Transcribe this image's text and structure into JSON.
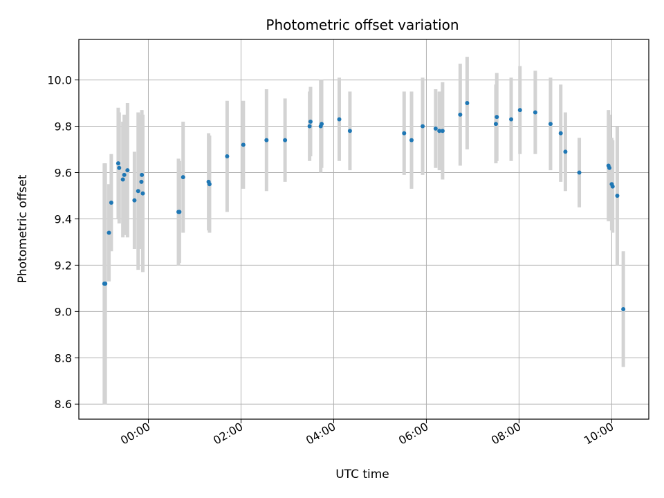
{
  "chart_data": {
    "type": "scatter",
    "title": "Photometric offset variation",
    "xlabel": "UTC time",
    "ylabel": "Photometric offset",
    "x_unit": "hours (UTC)",
    "xlim": [
      -1.5,
      10.8
    ],
    "ylim": [
      8.535,
      10.175
    ],
    "x_ticks": [
      0,
      2,
      4,
      6,
      8,
      10
    ],
    "x_tick_labels": [
      "00:00",
      "02:00",
      "04:00",
      "06:00",
      "08:00",
      "10:00"
    ],
    "y_ticks": [
      8.6,
      8.8,
      9.0,
      9.2,
      9.4,
      9.6,
      9.8,
      10.0
    ],
    "y_tick_labels": [
      "8.6",
      "8.8",
      "9.0",
      "9.2",
      "9.4",
      "9.6",
      "9.8",
      "10.0"
    ],
    "grid": true,
    "point_color": "#1f77b4",
    "errorbar_color": "#d3d3d3",
    "series": [
      {
        "points": [
          {
            "x": -0.95,
            "y": 9.12,
            "yerr": 0.52
          },
          {
            "x": -0.93,
            "y": 9.12,
            "yerr": 0.52
          },
          {
            "x": -0.85,
            "y": 9.34,
            "yerr": 0.21
          },
          {
            "x": -0.8,
            "y": 9.47,
            "yerr": 0.21
          },
          {
            "x": -0.65,
            "y": 9.64,
            "yerr": 0.24
          },
          {
            "x": -0.63,
            "y": 9.62,
            "yerr": 0.24
          },
          {
            "x": -0.55,
            "y": 9.57,
            "yerr": 0.25
          },
          {
            "x": -0.52,
            "y": 9.59,
            "yerr": 0.26
          },
          {
            "x": -0.45,
            "y": 9.61,
            "yerr": 0.29
          },
          {
            "x": -0.3,
            "y": 9.48,
            "yerr": 0.21
          },
          {
            "x": -0.22,
            "y": 9.52,
            "yerr": 0.34
          },
          {
            "x": -0.12,
            "y": 9.51,
            "yerr": 0.34
          },
          {
            "x": -0.14,
            "y": 9.59,
            "yerr": 0.28
          },
          {
            "x": -0.15,
            "y": 9.56,
            "yerr": 0.29
          },
          {
            "x": 0.67,
            "y": 9.43,
            "yerr": 0.22
          },
          {
            "x": 0.65,
            "y": 9.43,
            "yerr": 0.23
          },
          {
            "x": 0.75,
            "y": 9.58,
            "yerr": 0.24
          },
          {
            "x": 1.3,
            "y": 9.56,
            "yerr": 0.21
          },
          {
            "x": 1.32,
            "y": 9.55,
            "yerr": 0.21
          },
          {
            "x": 1.7,
            "y": 9.67,
            "yerr": 0.24
          },
          {
            "x": 2.05,
            "y": 9.72,
            "yerr": 0.19
          },
          {
            "x": 2.55,
            "y": 9.74,
            "yerr": 0.22
          },
          {
            "x": 2.95,
            "y": 9.74,
            "yerr": 0.18
          },
          {
            "x": 3.48,
            "y": 9.8,
            "yerr": 0.15
          },
          {
            "x": 3.5,
            "y": 9.82,
            "yerr": 0.15
          },
          {
            "x": 3.72,
            "y": 9.8,
            "yerr": 0.2
          },
          {
            "x": 3.74,
            "y": 9.81,
            "yerr": 0.19
          },
          {
            "x": 4.12,
            "y": 9.83,
            "yerr": 0.18
          },
          {
            "x": 4.35,
            "y": 9.78,
            "yerr": 0.17
          },
          {
            "x": 5.52,
            "y": 9.77,
            "yerr": 0.18
          },
          {
            "x": 5.68,
            "y": 9.74,
            "yerr": 0.21
          },
          {
            "x": 5.92,
            "y": 9.8,
            "yerr": 0.21
          },
          {
            "x": 6.2,
            "y": 9.79,
            "yerr": 0.17
          },
          {
            "x": 6.28,
            "y": 9.78,
            "yerr": 0.17
          },
          {
            "x": 6.35,
            "y": 9.78,
            "yerr": 0.21
          },
          {
            "x": 6.73,
            "y": 9.85,
            "yerr": 0.22
          },
          {
            "x": 6.88,
            "y": 9.9,
            "yerr": 0.2
          },
          {
            "x": 7.5,
            "y": 9.81,
            "yerr": 0.17
          },
          {
            "x": 7.52,
            "y": 9.84,
            "yerr": 0.19
          },
          {
            "x": 7.83,
            "y": 9.83,
            "yerr": 0.18
          },
          {
            "x": 8.02,
            "y": 9.87,
            "yerr": 0.19
          },
          {
            "x": 8.35,
            "y": 9.86,
            "yerr": 0.18
          },
          {
            "x": 8.68,
            "y": 9.81,
            "yerr": 0.2
          },
          {
            "x": 8.9,
            "y": 9.77,
            "yerr": 0.21
          },
          {
            "x": 9.0,
            "y": 9.69,
            "yerr": 0.17
          },
          {
            "x": 9.3,
            "y": 9.6,
            "yerr": 0.15
          },
          {
            "x": 9.93,
            "y": 9.63,
            "yerr": 0.24
          },
          {
            "x": 9.95,
            "y": 9.62,
            "yerr": 0.23
          },
          {
            "x": 10.0,
            "y": 9.55,
            "yerr": 0.2
          },
          {
            "x": 10.02,
            "y": 9.54,
            "yerr": 0.2
          },
          {
            "x": 10.12,
            "y": 9.5,
            "yerr": 0.3
          },
          {
            "x": 10.25,
            "y": 9.01,
            "yerr": 0.25
          }
        ]
      }
    ]
  }
}
